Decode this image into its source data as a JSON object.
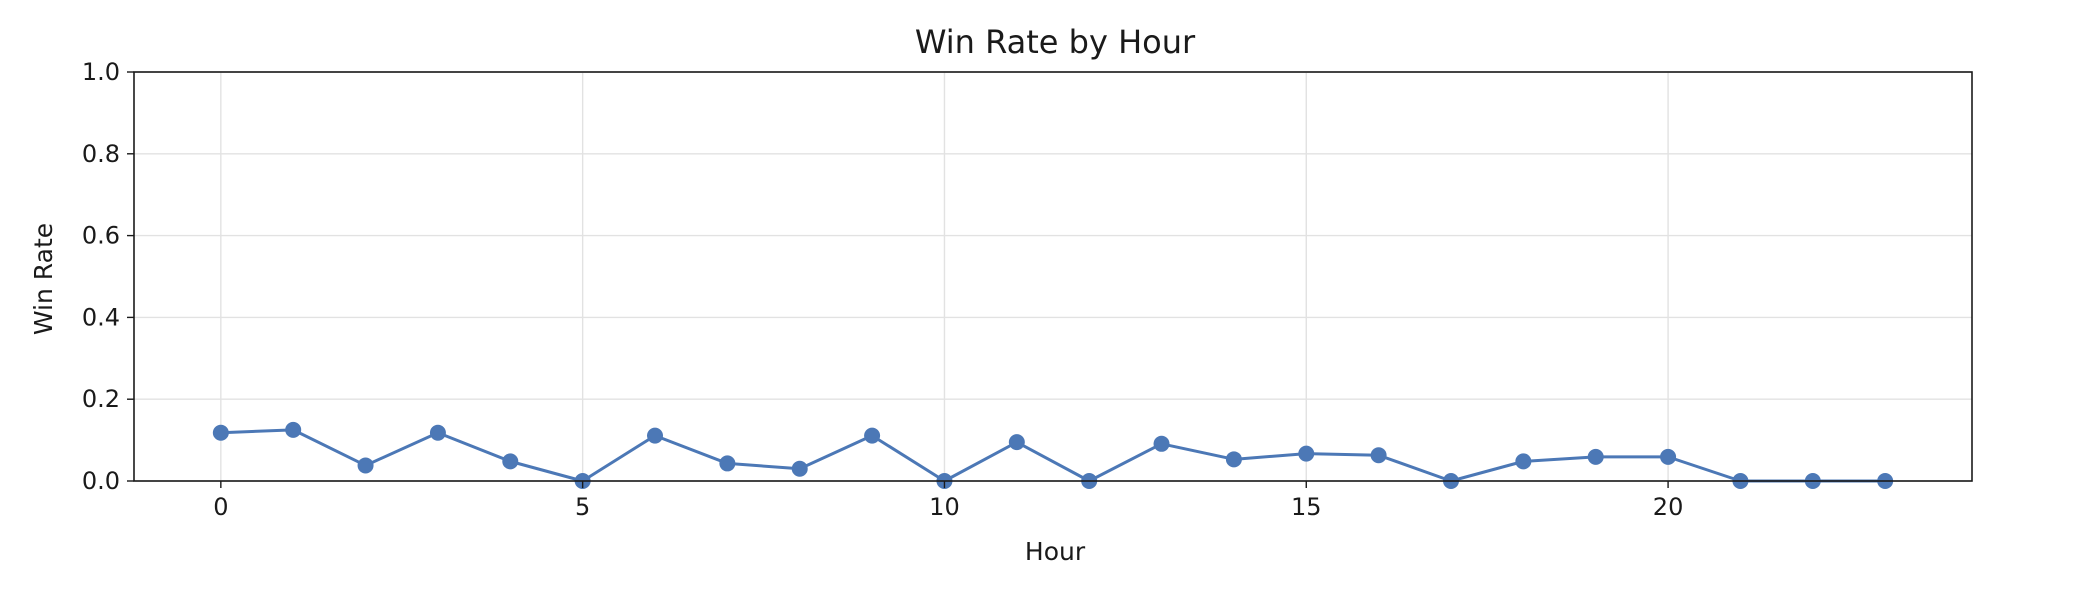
{
  "chart_data": {
    "type": "line",
    "title": "Win Rate by Hour",
    "xlabel": "Hour",
    "ylabel": "Win Rate",
    "xlim": [
      -1.2,
      24.2
    ],
    "ylim": [
      0.0,
      1.0
    ],
    "xticks": [
      0,
      5,
      10,
      15,
      20
    ],
    "xtick_labels": [
      "0",
      "5",
      "10",
      "15",
      "20"
    ],
    "yticks": [
      0.0,
      0.2,
      0.4,
      0.6,
      0.8,
      1.0
    ],
    "ytick_labels": [
      "0.0",
      "0.2",
      "0.4",
      "0.6",
      "0.8",
      "1.0"
    ],
    "grid": true,
    "series": [
      {
        "color": "#4c78b6",
        "marker": "circle",
        "x": [
          0,
          1,
          2,
          3,
          4,
          5,
          6,
          7,
          8,
          9,
          10,
          11,
          12,
          13,
          14,
          15,
          16,
          17,
          18,
          19,
          20,
          21,
          22,
          23
        ],
        "values": [
          0.118,
          0.125,
          0.038,
          0.118,
          0.048,
          0.0,
          0.111,
          0.043,
          0.03,
          0.111,
          0.0,
          0.095,
          0.0,
          0.091,
          0.053,
          0.067,
          0.063,
          0.0,
          0.048,
          0.059,
          0.059,
          0.0,
          0.0,
          0.0
        ]
      }
    ]
  }
}
